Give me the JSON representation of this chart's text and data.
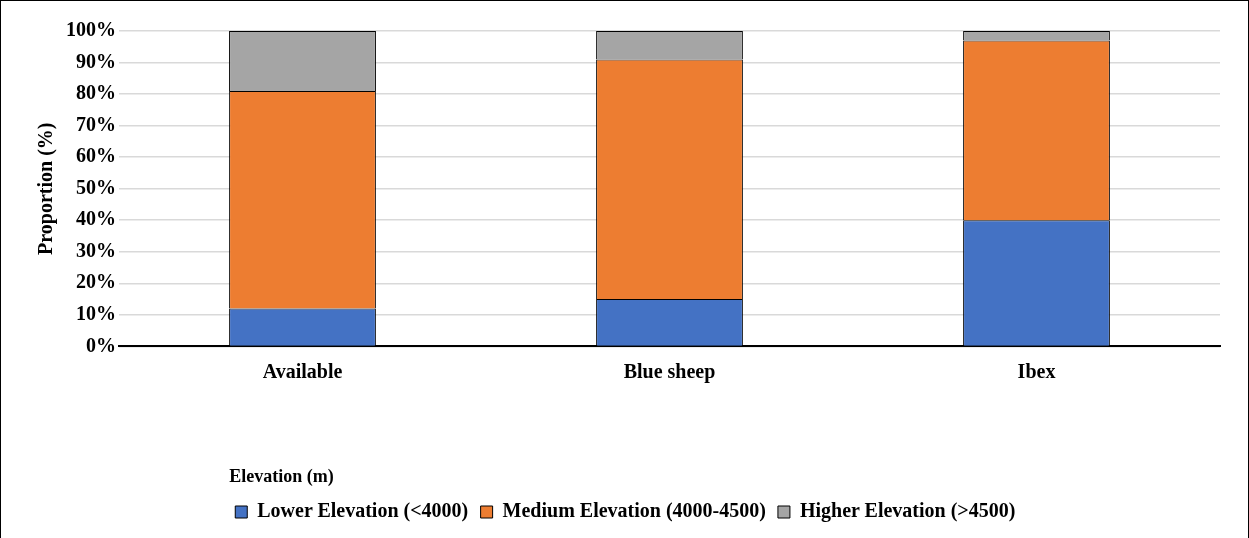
{
  "chart_data": {
    "type": "bar",
    "stacked": true,
    "ylabel": "Proportion (%)",
    "legend_title": "Elevation (m)",
    "legend": "bottom",
    "categories": [
      "Available",
      "Blue sheep",
      "Ibex"
    ],
    "series": [
      {
        "name": "Lower Elevation (<4000)",
        "color": "#4472c4",
        "values": [
          12,
          15,
          40
        ]
      },
      {
        "name": "Medium Elevation (4000-4500)",
        "color": "#ed7d31",
        "values": [
          69,
          76,
          57
        ]
      },
      {
        "name": "Higher Elevation (>4500)",
        "color": "#a5a5a5",
        "values": [
          19,
          9,
          3
        ]
      }
    ],
    "ylim": [
      0,
      100
    ],
    "yticks": [
      {
        "value": 0,
        "label": "0%"
      },
      {
        "value": 10,
        "label": "10%"
      },
      {
        "value": 20,
        "label": "20%"
      },
      {
        "value": 30,
        "label": "30%"
      },
      {
        "value": 40,
        "label": "40%"
      },
      {
        "value": 50,
        "label": "50%"
      },
      {
        "value": 60,
        "label": "60%"
      },
      {
        "value": 70,
        "label": "70%"
      },
      {
        "value": 80,
        "label": "80%"
      },
      {
        "value": 90,
        "label": "90%"
      },
      {
        "value": 100,
        "label": "100%"
      }
    ],
    "grid": "y"
  }
}
